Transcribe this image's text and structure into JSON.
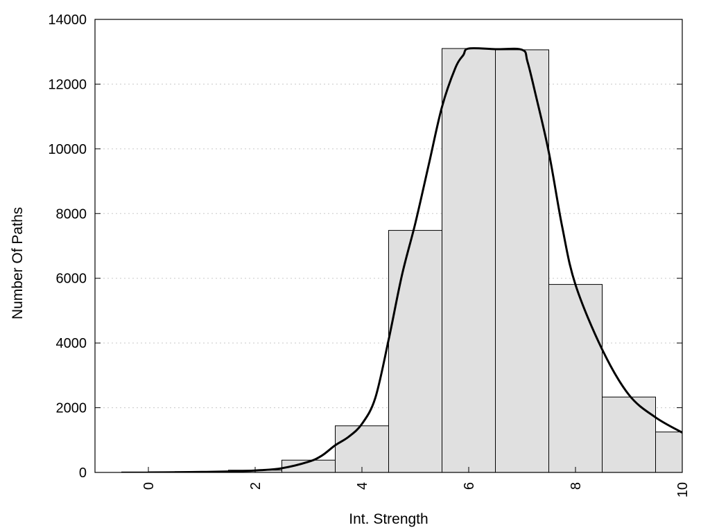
{
  "chart_data": {
    "type": "bar",
    "xlabel": "Int. Strength",
    "ylabel": "Number Of Paths",
    "xlim": [
      -1,
      10
    ],
    "ylim": [
      0,
      14000
    ],
    "x_ticks": [
      0,
      2,
      4,
      6,
      8,
      10
    ],
    "y_ticks": [
      0,
      2000,
      4000,
      6000,
      8000,
      10000,
      12000,
      14000
    ],
    "grid": "horizontal dotted",
    "bar_color": "#e0e0e0",
    "bars": {
      "x": [
        0,
        1,
        2,
        3,
        4,
        5,
        6,
        7,
        8,
        9,
        10
      ],
      "values": [
        15,
        25,
        70,
        380,
        1440,
        7480,
        13100,
        13060,
        5810,
        2330,
        1250
      ]
    },
    "fit_curve": {
      "x": [
        0,
        0.5,
        1,
        1.5,
        2,
        2.5,
        3,
        3.25,
        3.5,
        3.75,
        4,
        4.25,
        4.5,
        4.75,
        5,
        5.25,
        5.5,
        5.75,
        5.9,
        6,
        6.5,
        7,
        7.1,
        7.25,
        7.5,
        7.75,
        8,
        8.5,
        9,
        9.5,
        10
      ],
      "y": [
        0,
        5,
        15,
        30,
        60,
        130,
        330,
        520,
        840,
        1100,
        1500,
        2300,
        4100,
        6100,
        7700,
        9500,
        11300,
        12500,
        12900,
        13100,
        13080,
        13060,
        12700,
        11700,
        9900,
        7600,
        5800,
        3800,
        2400,
        1700,
        1230
      ]
    }
  }
}
